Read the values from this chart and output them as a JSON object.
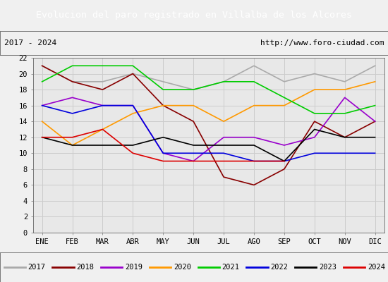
{
  "title": "Evolucion del paro registrado en Villalba de los Alcores",
  "subtitle_left": "2017 - 2024",
  "subtitle_right": "http://www.foro-ciudad.com",
  "months": [
    "ENE",
    "FEB",
    "MAR",
    "ABR",
    "MAY",
    "JUN",
    "JUL",
    "AGO",
    "SEP",
    "OCT",
    "NOV",
    "DIC"
  ],
  "ylim": [
    0,
    22
  ],
  "yticks": [
    0,
    2,
    4,
    6,
    8,
    10,
    12,
    14,
    16,
    18,
    20,
    22
  ],
  "series": {
    "2017": {
      "color": "#aaaaaa",
      "values": [
        21,
        19,
        19,
        20,
        19,
        18,
        19,
        21,
        19,
        20,
        19,
        21
      ]
    },
    "2018": {
      "color": "#880000",
      "values": [
        21,
        19,
        18,
        20,
        16,
        14,
        7,
        6,
        8,
        14,
        12,
        14
      ]
    },
    "2019": {
      "color": "#9900cc",
      "values": [
        16,
        17,
        16,
        16,
        10,
        9,
        12,
        12,
        11,
        12,
        17,
        14
      ]
    },
    "2020": {
      "color": "#ff9900",
      "values": [
        14,
        11,
        13,
        15,
        16,
        16,
        14,
        16,
        16,
        18,
        18,
        19
      ]
    },
    "2021": {
      "color": "#00cc00",
      "values": [
        19,
        21,
        21,
        21,
        18,
        18,
        19,
        19,
        17,
        15,
        15,
        16
      ]
    },
    "2022": {
      "color": "#0000dd",
      "values": [
        16,
        15,
        16,
        16,
        10,
        10,
        10,
        9,
        9,
        10,
        10,
        10
      ]
    },
    "2023": {
      "color": "#000000",
      "values": [
        12,
        11,
        11,
        11,
        12,
        11,
        11,
        11,
        9,
        13,
        12,
        12
      ]
    },
    "2024": {
      "color": "#dd0000",
      "values": [
        12,
        12,
        13,
        10,
        9,
        9,
        9,
        9,
        9,
        null,
        null,
        null
      ]
    }
  },
  "bg_color": "#f0f0f0",
  "plot_bg": "#e8e8e8",
  "title_bg": "#5577cc",
  "title_color": "white",
  "grid_color": "#cccccc",
  "legend_order": [
    "2017",
    "2018",
    "2019",
    "2020",
    "2021",
    "2022",
    "2023",
    "2024"
  ]
}
